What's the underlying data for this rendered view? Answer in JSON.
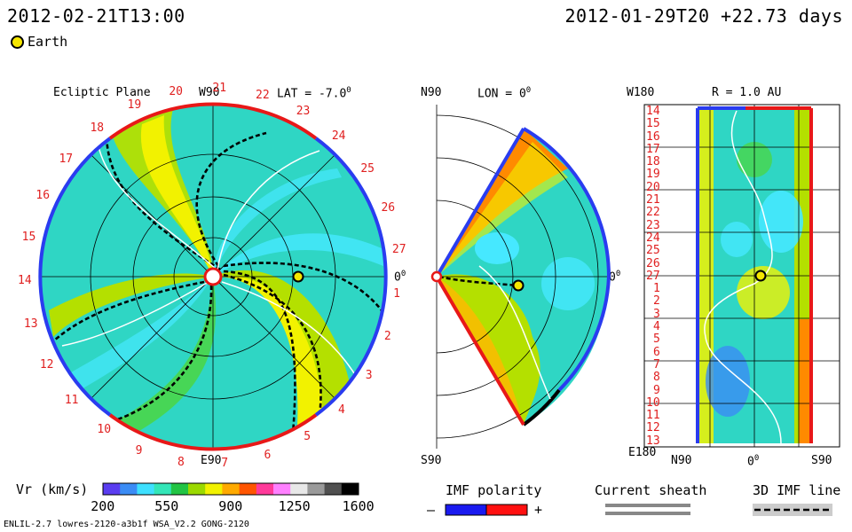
{
  "header": {
    "left_time": "2012-02-21T13:00",
    "right_time": "2012-01-29T20 +22.73 days",
    "earth_label": "Earth"
  },
  "panels": {
    "ecliptic_title": "Ecliptic Plane",
    "lat_label": "LAT = -7.0",
    "lat_deg": "0",
    "w90": "W90",
    "e90": "E90",
    "zero_left": "0",
    "zero_left_deg": "0",
    "meridional_n": "N90",
    "meridional_s": "S90",
    "lon_label": "LON = 0",
    "lon_deg": "0",
    "zero_mid": "0",
    "zero_mid_deg": "0",
    "radial_title": "R = 1.0 AU",
    "w180": "W180",
    "e180": "E180",
    "bottom_n90": "N90",
    "bottom_zero": "0",
    "bottom_zero_deg": "0",
    "bottom_s90": "S90"
  },
  "ecliptic_ticks": [
    "19",
    "20",
    "21",
    "22",
    "23",
    "24",
    "25",
    "26",
    "27",
    "1",
    "2",
    "3",
    "4",
    "5",
    "6",
    "7",
    "8",
    "9",
    "10",
    "11",
    "12",
    "13",
    "14",
    "15",
    "16",
    "17",
    "18"
  ],
  "radial_ticks": [
    "14",
    "15",
    "16",
    "17",
    "18",
    "19",
    "20",
    "21",
    "22",
    "23",
    "24",
    "25",
    "26",
    "27",
    "1",
    "2",
    "3",
    "4",
    "5",
    "6",
    "7",
    "8",
    "9",
    "10",
    "11",
    "12",
    "13"
  ],
  "colorbar": {
    "title": "Vr (km/s)",
    "ticks": [
      "200",
      "550",
      "900",
      "1250",
      "1600"
    ],
    "colors": [
      "#5a3df0",
      "#3b8cf5",
      "#3ee0ff",
      "#33e6b8",
      "#22c444",
      "#9bd900",
      "#f2f200",
      "#ffaa00",
      "#ff5500",
      "#ff3a9a",
      "#ff80ff",
      "#e8e8e8",
      "#9a9a9a",
      "#505050",
      "#000000"
    ]
  },
  "legends": {
    "imf_title": "IMF polarity",
    "imf_minus": "–",
    "imf_plus": "+",
    "sheath_title": "Current sheath",
    "imf3d_title": "3D IMF line"
  },
  "footer": {
    "model": "ENLIL-2.7 lowres-2120-a3b1f WSA_V2.2 GONG-2120"
  },
  "chart_data": [
    {
      "type": "heatmap",
      "title": "Ecliptic Plane",
      "subtitle": "LAT = -7.0°",
      "variable": "Vr (km/s)",
      "range": [
        200,
        1600
      ],
      "earth_marker": "Earth",
      "carrington_ticks": [
        "19",
        "20",
        "21",
        "22",
        "23",
        "24",
        "25",
        "26",
        "27",
        "1",
        "2",
        "3",
        "4",
        "5",
        "6",
        "7",
        "8",
        "9",
        "10",
        "11",
        "12",
        "13",
        "14",
        "15",
        "16",
        "17",
        "18"
      ]
    },
    {
      "type": "heatmap",
      "title": "LON = 0°",
      "y_labels": [
        "N90",
        "S90"
      ],
      "variable": "Vr (km/s)",
      "range": [
        200,
        1600
      ]
    },
    {
      "type": "heatmap",
      "title": "R = 1.0 AU",
      "y_labels": [
        "W180",
        "E180"
      ],
      "x_labels": [
        "N90",
        "0°",
        "S90"
      ],
      "y_ticks": [
        "14",
        "15",
        "16",
        "17",
        "18",
        "19",
        "20",
        "21",
        "22",
        "23",
        "24",
        "25",
        "26",
        "27",
        "1",
        "2",
        "3",
        "4",
        "5",
        "6",
        "7",
        "8",
        "9",
        "10",
        "11",
        "12",
        "13"
      ],
      "variable": "Vr (km/s)",
      "range": [
        200,
        1600
      ]
    }
  ]
}
